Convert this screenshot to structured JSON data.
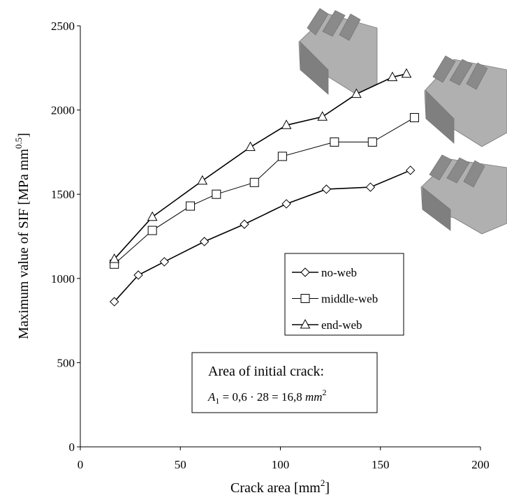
{
  "chart_data": {
    "type": "line",
    "x_label": {
      "text": "Crack area [mm",
      "superscript": "2",
      "suffix": "]"
    },
    "y_label": {
      "text": "Maximum value of SIF [MPa mm",
      "superscript": "0.5",
      "suffix": "]"
    },
    "xlim": [
      0,
      200
    ],
    "xticks": [
      0,
      50,
      100,
      150,
      200
    ],
    "ylim": [
      0,
      2500
    ],
    "yticks": [
      0,
      500,
      1000,
      1500,
      2000,
      2500
    ],
    "series": [
      {
        "name": "no-web",
        "color": "#000000",
        "marker": "diamond",
        "x": [
          17,
          29,
          42,
          62,
          82,
          103,
          123,
          145,
          165
        ],
        "values": [
          862,
          1020,
          1099,
          1219,
          1322,
          1443,
          1530,
          1542,
          1642
        ]
      },
      {
        "name": "middle-web",
        "color": "#000000",
        "marker": "square",
        "x": [
          17,
          36,
          55,
          68,
          87,
          101,
          127,
          146,
          167
        ],
        "values": [
          1085,
          1285,
          1430,
          1500,
          1570,
          1725,
          1810,
          1810,
          1955
        ]
      },
      {
        "name": "end-web",
        "color": "#000000",
        "marker": "triangle",
        "x": [
          17,
          36,
          61,
          85,
          103,
          121,
          138,
          156,
          163
        ],
        "values": [
          1115,
          1365,
          1580,
          1780,
          1910,
          1960,
          2095,
          2195,
          2215
        ]
      }
    ],
    "annotation": {
      "title": "Area of initial crack:",
      "formula": {
        "symbol": "A",
        "subscript": "1",
        "expression": " = 0,6 · 28 = 16,8 ",
        "unit": "mm",
        "superscript": "2"
      }
    }
  }
}
